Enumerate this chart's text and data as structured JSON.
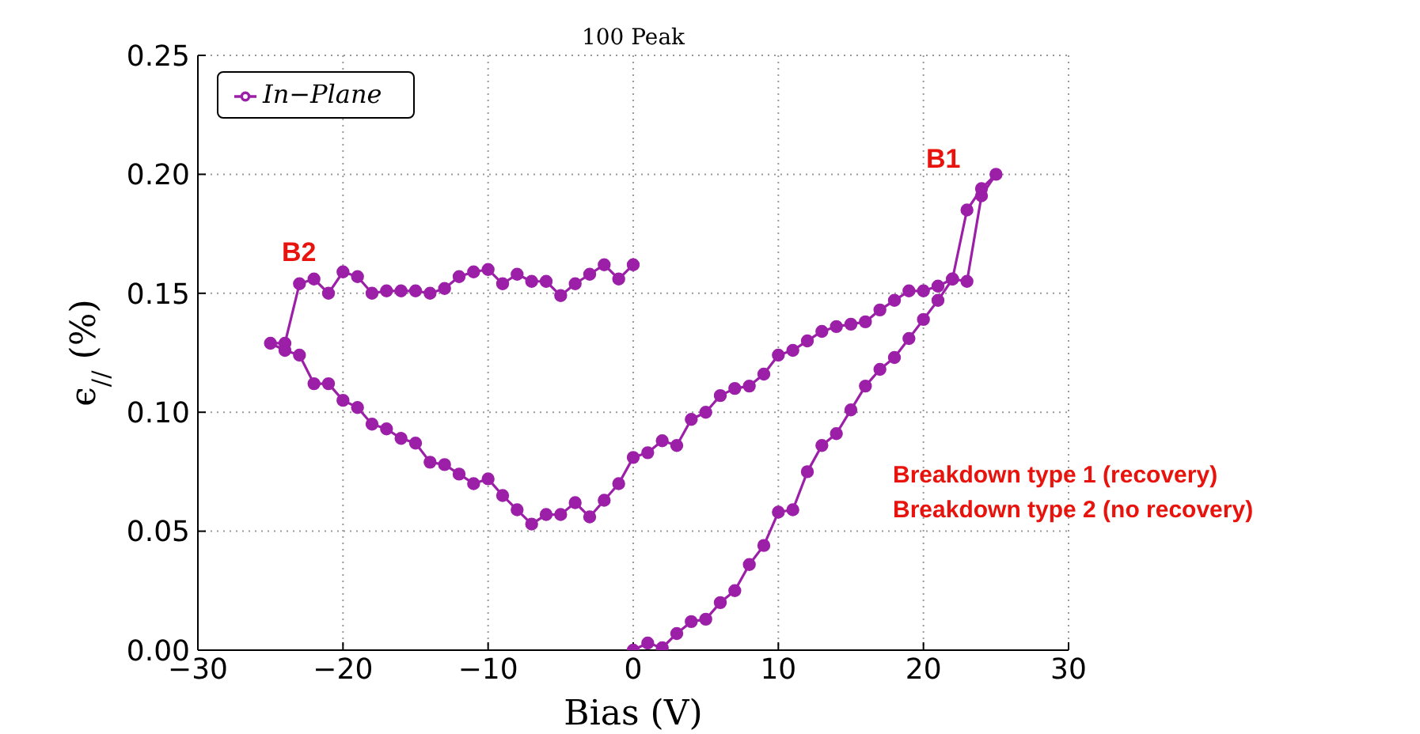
{
  "chart_data": {
    "type": "line",
    "title": "100 Peak",
    "xlabel": "Bias (V)",
    "ylabel": "ϵ$_{//}$ (%)",
    "xlim": [
      -30,
      30
    ],
    "xticks": [
      {
        "value": -30,
        "label": "−30"
      },
      {
        "value": -20,
        "label": "−20"
      },
      {
        "value": -10,
        "label": "−10"
      },
      0,
      10,
      20,
      30
    ],
    "ylim": [
      0,
      0.25
    ],
    "yticks": [
      {
        "value": 0,
        "label": "0.00"
      },
      {
        "value": 0.05,
        "label": "0.05"
      },
      {
        "value": 0.1,
        "label": "0.10"
      },
      {
        "value": 0.15,
        "label": "0.15"
      },
      {
        "value": 0.2,
        "label": "0.20"
      },
      {
        "value": 0.25,
        "label": "0.25"
      }
    ],
    "grid": true,
    "legend": "top left",
    "marker": "circle",
    "line_style": "solid",
    "annotations": [
      "B2",
      "B1",
      "Breakdown type 1 (recovery)",
      "Breakdown type 2 (no recovery)"
    ],
    "series": [
      {
        "name": "In−Plane",
        "color": "#9c1fa8",
        "x": [
          0,
          1,
          2,
          3,
          4,
          5,
          6,
          7,
          8,
          9,
          10,
          11,
          12,
          13,
          14,
          15,
          16,
          17,
          18,
          19,
          20,
          21,
          22,
          23,
          24,
          25,
          24,
          23,
          22,
          21,
          20,
          19,
          18,
          17,
          16,
          15,
          14,
          13,
          12,
          11,
          10,
          9,
          8,
          7,
          6,
          5,
          4,
          3,
          2,
          1,
          0,
          -1,
          -2,
          -3,
          -4,
          -5,
          -6,
          -7,
          -8,
          -9,
          -10,
          -11,
          -12,
          -13,
          -14,
          -15,
          -16,
          -17,
          -18,
          -19,
          -20,
          -21,
          -22,
          -23,
          -24,
          -25,
          -24,
          -23,
          -22,
          -21,
          -20,
          -19,
          -18,
          -17,
          -16,
          -15,
          -14,
          -13,
          -12,
          -11,
          -10,
          -9,
          -8,
          -7,
          -6,
          -5,
          -4,
          -3,
          -2,
          -1,
          0
        ],
        "values": [
          0,
          0.003,
          0.001,
          0.007,
          0.012,
          0.013,
          0.02,
          0.025,
          0.036,
          0.044,
          0.058,
          0.059,
          0.075,
          0.086,
          0.091,
          0.101,
          0.111,
          0.118,
          0.123,
          0.131,
          0.139,
          0.147,
          0.156,
          0.155,
          0.191,
          0.2,
          0.194,
          0.185,
          0.156,
          0.153,
          0.151,
          0.151,
          0.147,
          0.143,
          0.138,
          0.137,
          0.136,
          0.134,
          0.13,
          0.126,
          0.124,
          0.116,
          0.111,
          0.11,
          0.107,
          0.1,
          0.097,
          0.086,
          0.088,
          0.083,
          0.081,
          0.07,
          0.063,
          0.056,
          0.062,
          0.057,
          0.057,
          0.053,
          0.059,
          0.065,
          0.072,
          0.07,
          0.074,
          0.078,
          0.079,
          0.087,
          0.089,
          0.093,
          0.095,
          0.102,
          0.105,
          0.112,
          0.112,
          0.124,
          0.126,
          0.129,
          0.129,
          0.154,
          0.156,
          0.15,
          0.159,
          0.157,
          0.15,
          0.151,
          0.151,
          0.151,
          0.15,
          0.152,
          0.157,
          0.159,
          0.16,
          0.154,
          0.158,
          0.155,
          0.155,
          0.149,
          0.154,
          0.158,
          0.162,
          0.156,
          0.162
        ]
      }
    ]
  }
}
